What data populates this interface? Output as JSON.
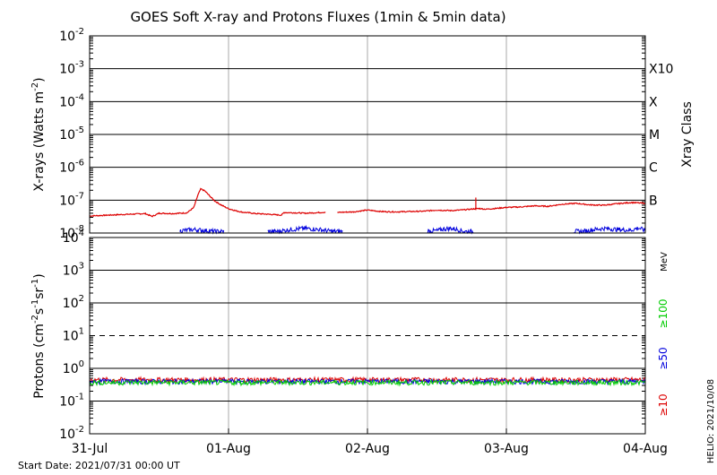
{
  "title": "GOES Soft X-ray and Protons Fluxes   (1min & 5min data)",
  "footer": {
    "start_date": "Start Date: 2021/07/31 00:00 UT",
    "helio": "HELIO: 2021/10/08"
  },
  "chart_data": [
    {
      "type": "line",
      "panel": "xray",
      "title": "GOES Soft X-ray and Protons Fluxes (1min & 5min data)",
      "ylabel": "X-rays (Watts m^-2)",
      "yscale": "log",
      "ylim": [
        1e-08,
        0.01
      ],
      "xlim": [
        "2021-07-31",
        "2021-08-04"
      ],
      "x_ticks": [
        "31-Jul",
        "01-Aug",
        "02-Aug",
        "03-Aug",
        "04-Aug"
      ],
      "y_ticks": [
        {
          "base": "10",
          "exp": "-8"
        },
        {
          "base": "10",
          "exp": "-7"
        },
        {
          "base": "10",
          "exp": "-6"
        },
        {
          "base": "10",
          "exp": "-5"
        },
        {
          "base": "10",
          "exp": "-4"
        },
        {
          "base": "10",
          "exp": "-3"
        },
        {
          "base": "10",
          "exp": "-2"
        }
      ],
      "right_axis_label": "Xray Class",
      "class_labels": [
        {
          "label": "B",
          "value": 1e-07
        },
        {
          "label": "C",
          "value": 1e-06
        },
        {
          "label": "M",
          "value": 1e-05
        },
        {
          "label": "X",
          "value": 0.0001
        },
        {
          "label": "X10",
          "value": 0.001
        }
      ],
      "grid": true,
      "series": [
        {
          "band": "long",
          "color": "#dd0000",
          "x": [
            0.0,
            0.2,
            0.4,
            0.45,
            0.5,
            0.6,
            0.7,
            0.75,
            0.78,
            0.8,
            0.83,
            0.86,
            0.9,
            0.95,
            1.0,
            1.05,
            1.1,
            1.2,
            1.3,
            1.38,
            1.4,
            1.5,
            1.55,
            1.6,
            1.7,
            1.75,
            1.78,
            1.82,
            1.9,
            2.0,
            2.1,
            2.2,
            2.3,
            2.4,
            2.5,
            2.6,
            2.7,
            2.8,
            2.85,
            2.9,
            3.0,
            3.1,
            3.2,
            3.3,
            3.4,
            3.5,
            3.6,
            3.7,
            3.8,
            3.9,
            4.0
          ],
          "y": [
            3.3e-08,
            3.6e-08,
            3.9e-08,
            3.2e-08,
            4e-08,
            3.9e-08,
            4.1e-08,
            6e-08,
            1.45e-07,
            2.2e-07,
            1.9e-07,
            1.4e-07,
            9.5e-08,
            7e-08,
            5.5e-08,
            4.8e-08,
            4.3e-08,
            3.9e-08,
            3.7e-08,
            3.5e-08,
            4.2e-08,
            4.1e-08,
            4e-08,
            4.1e-08,
            4.3e-08,
            null,
            4.2e-08,
            4.3e-08,
            4.4e-08,
            5e-08,
            4.5e-08,
            4.4e-08,
            4.5e-08,
            4.6e-08,
            5e-08,
            4.8e-08,
            5.1e-08,
            5.6e-08,
            5.3e-08,
            5.5e-08,
            6e-08,
            6.2e-08,
            6.7e-08,
            6.5e-08,
            7.5e-08,
            8e-08,
            7.2e-08,
            7e-08,
            7.8e-08,
            8.5e-08,
            8e-08
          ]
        },
        {
          "band": "short",
          "color": "#0000dd",
          "x": [
            0.65,
            0.7,
            0.75,
            0.8,
            0.85,
            0.9,
            1.35,
            1.45,
            1.55,
            1.65,
            1.75,
            2.5,
            2.55,
            2.6,
            2.65,
            2.7,
            3.55,
            3.6,
            3.7,
            3.8,
            3.9,
            3.95,
            4.0
          ],
          "y": [
            1.1e-08,
            1.15e-08,
            1.2e-08,
            1.15e-08,
            1.1e-08,
            1.05e-08,
            1.05e-08,
            1.2e-08,
            1.3e-08,
            1.2e-08,
            1.05e-08,
            1.1e-08,
            1.25e-08,
            1.3e-08,
            1.2e-08,
            1.05e-08,
            1.05e-08,
            1.15e-08,
            1.3e-08,
            1.2e-08,
            1.15e-08,
            1.35e-08,
            1.1e-08
          ]
        }
      ]
    },
    {
      "type": "line",
      "panel": "protons",
      "ylabel": "Protons (cm^-2 s^-1 sr^-1)",
      "yscale": "log",
      "ylim": [
        0.01,
        10000
      ],
      "xlim": [
        "2021-07-31",
        "2021-08-04"
      ],
      "x_ticks": [
        "31-Jul",
        "01-Aug",
        "02-Aug",
        "03-Aug",
        "04-Aug"
      ],
      "y_ticks": [
        {
          "base": "10",
          "exp": "-2"
        },
        {
          "base": "10",
          "exp": "-1"
        },
        {
          "base": "10",
          "exp": "0"
        },
        {
          "base": "10",
          "exp": "1"
        },
        {
          "base": "10",
          "exp": "2"
        },
        {
          "base": "10",
          "exp": "3"
        },
        {
          "base": "10",
          "exp": "4"
        }
      ],
      "threshold": 10,
      "unit_label": "MeV",
      "grid": true,
      "series": [
        {
          "name": "≥10",
          "color": "#dd0000",
          "value": 0.45,
          "x": [
            0.0,
            4.0
          ],
          "y": [
            0.45,
            0.45
          ]
        },
        {
          "name": "≥50",
          "color": "#0000dd",
          "value": 0.4,
          "x": [
            0.0,
            4.0
          ],
          "y": [
            0.4,
            0.4
          ]
        },
        {
          "name": "≥100",
          "color": "#00cc00",
          "value": 0.37,
          "x": [
            0.0,
            4.0
          ],
          "y": [
            0.37,
            0.37
          ]
        }
      ]
    }
  ]
}
